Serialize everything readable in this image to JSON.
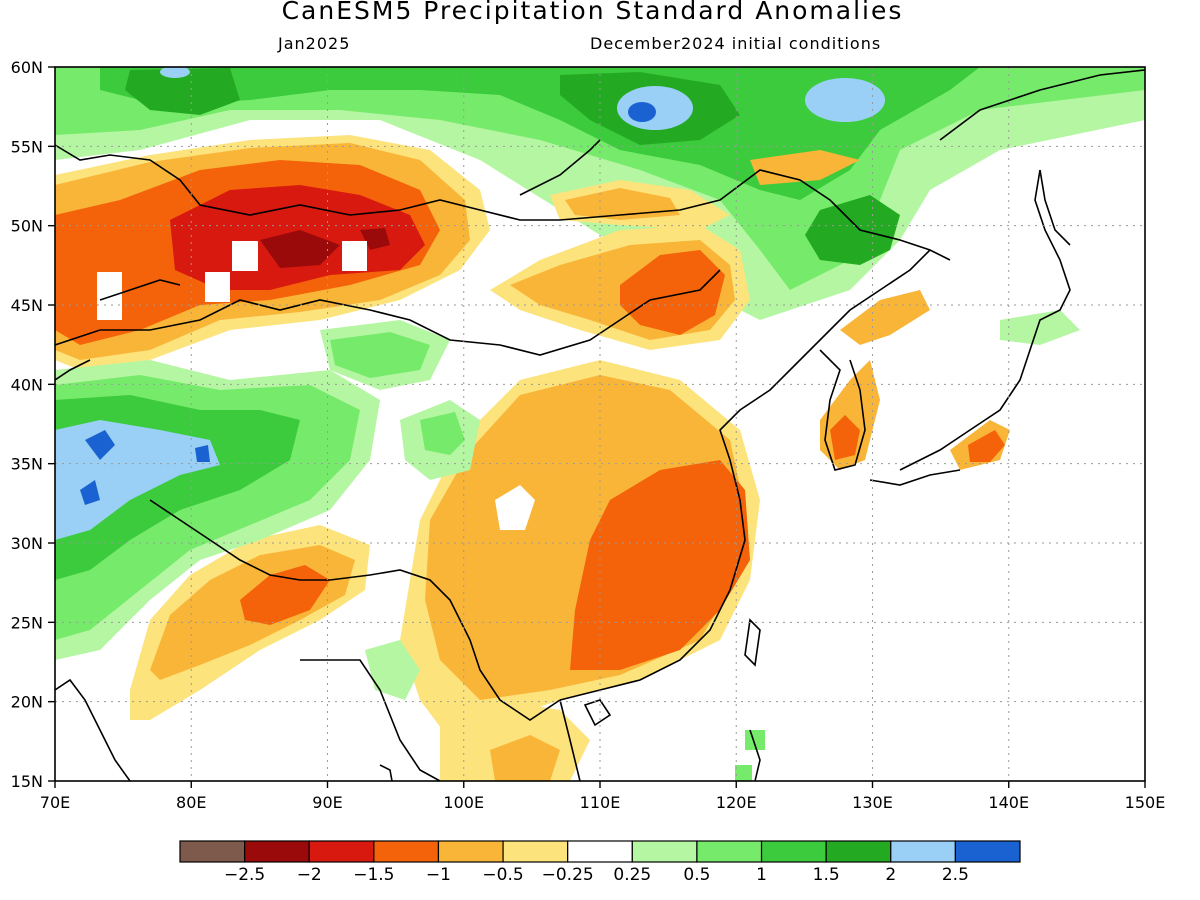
{
  "header": {
    "title": "CanESM5 Precipitation Standard Anomalies",
    "month": "Jan2025",
    "init": "December2024 initial conditions"
  },
  "map": {
    "region": {
      "lon_min": 70,
      "lon_max": 150,
      "lat_min": 15,
      "lat_max": 60
    },
    "x_ticks": [
      "70E",
      "80E",
      "90E",
      "100E",
      "110E",
      "120E",
      "130E",
      "140E",
      "150E"
    ],
    "y_ticks": [
      "15N",
      "20N",
      "25N",
      "30N",
      "35N",
      "40N",
      "45N",
      "50N",
      "55N",
      "60N"
    ],
    "grid": true
  },
  "colorbar": {
    "colors": [
      "#7d5a4c",
      "#9b0a0a",
      "#d7190f",
      "#f46309",
      "#f9b538",
      "#fce37c",
      "#ffffff",
      "#b4f6a2",
      "#76ea6a",
      "#3bcb3d",
      "#23aa22",
      "#9ad0f5",
      "#1a62d1"
    ],
    "labels": [
      "−2.5",
      "−2",
      "−1.5",
      "−1",
      "−0.5",
      "−0.25",
      "0.25",
      "0.5",
      "1",
      "1.5",
      "2",
      "2.5"
    ]
  },
  "palette": {
    "land_outline": "#000000",
    "grid": "#9a9a9a"
  }
}
